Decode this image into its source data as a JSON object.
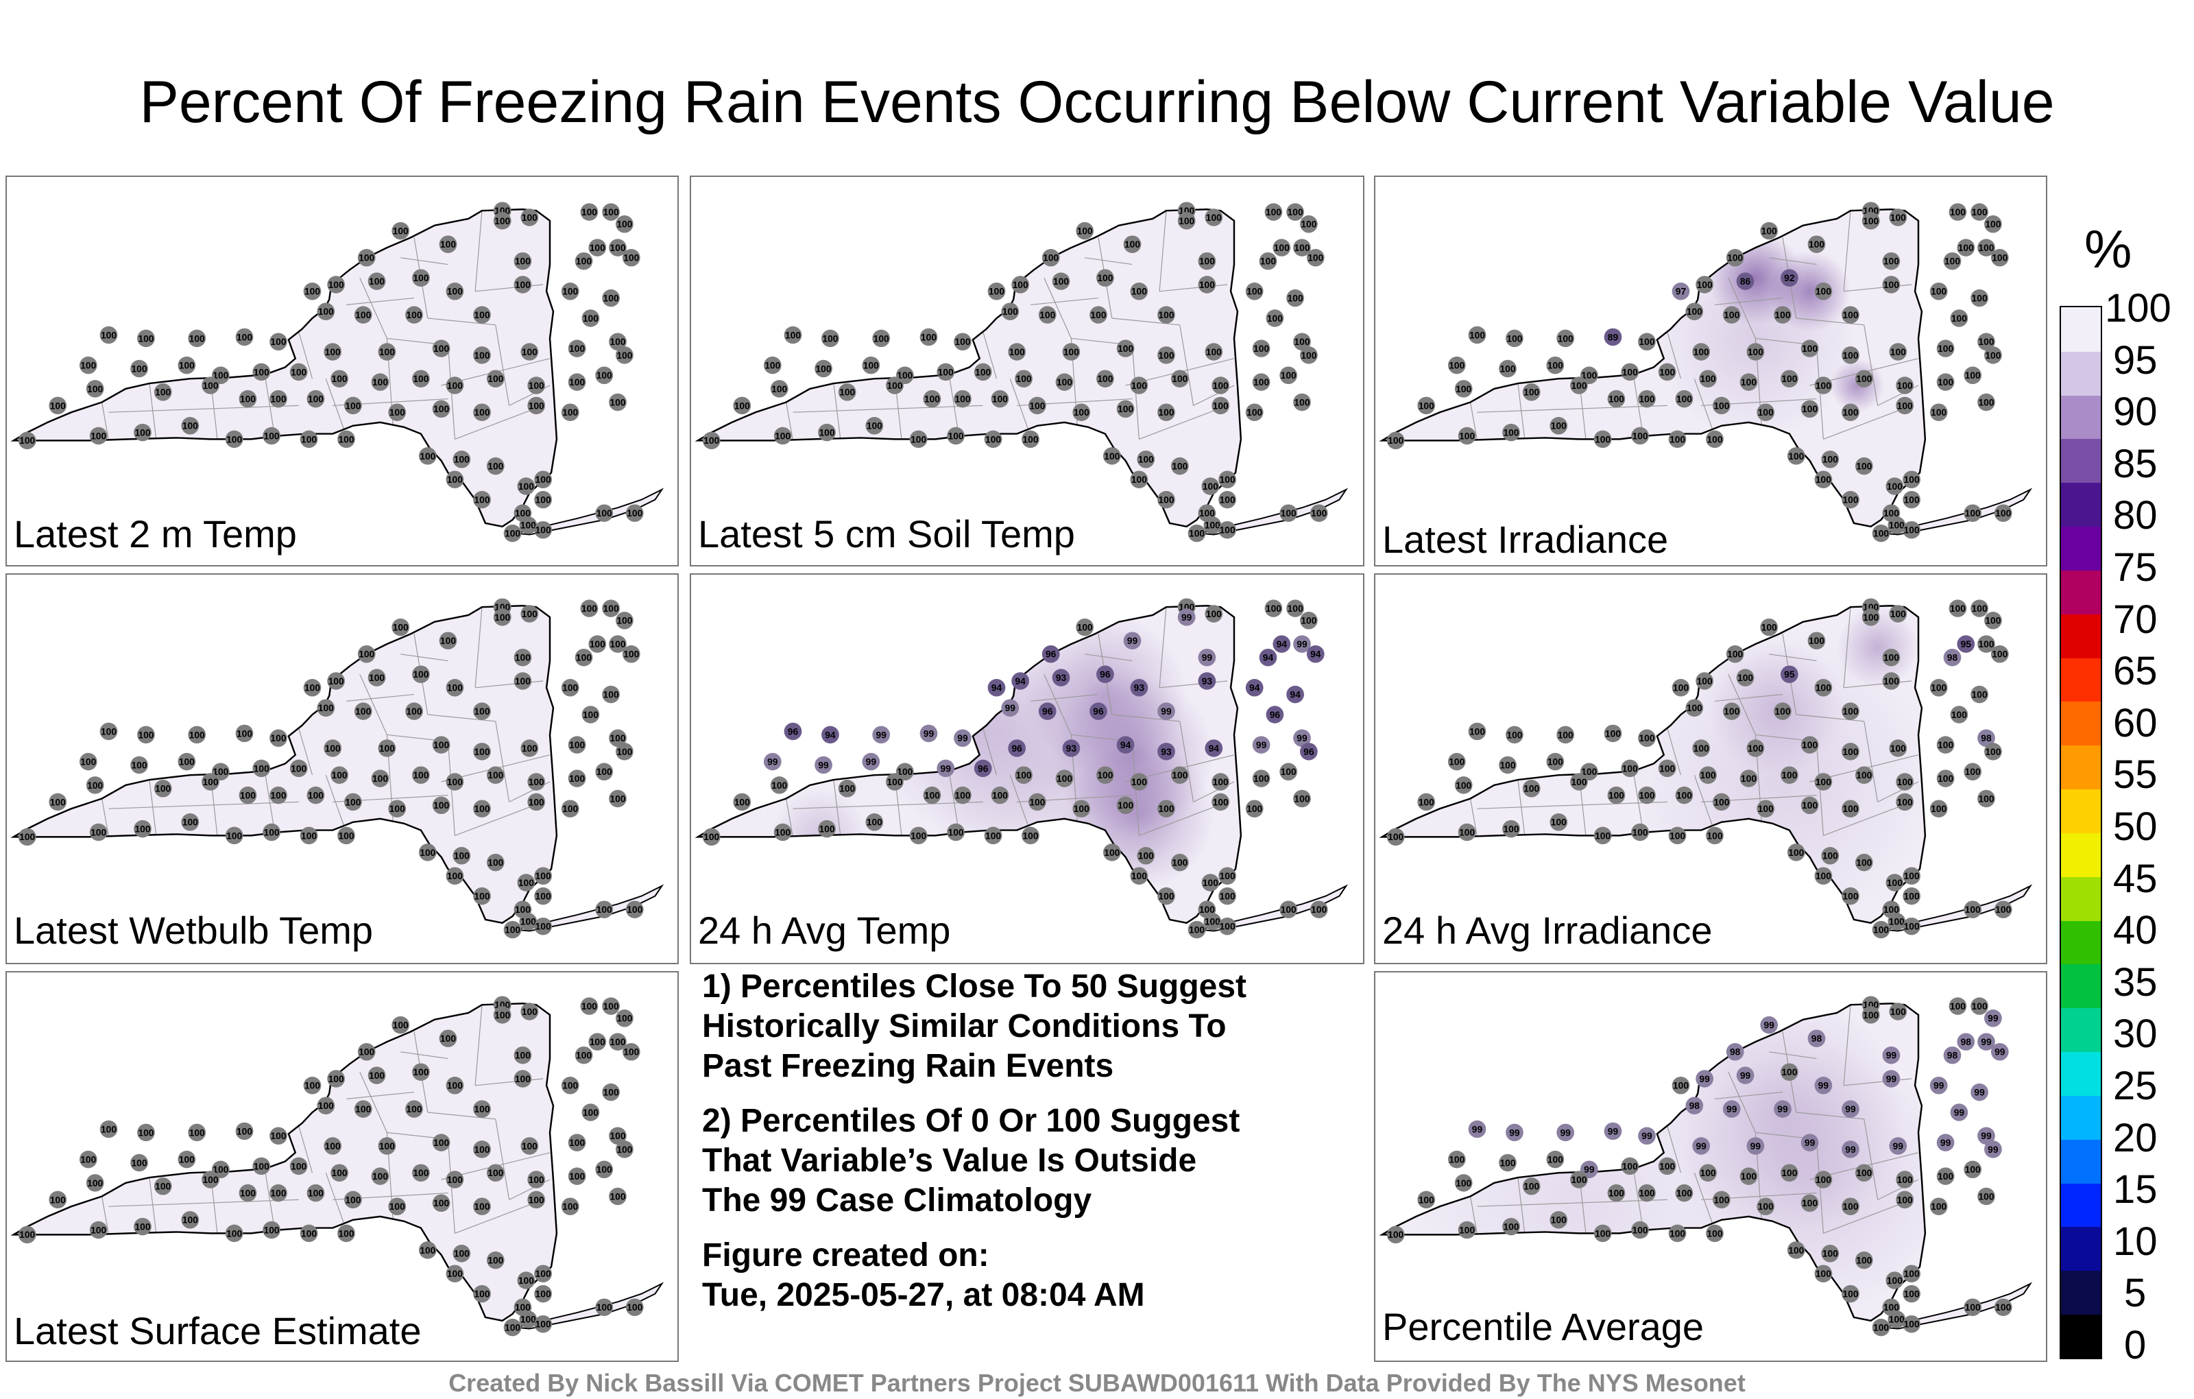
{
  "title": "Percent Of Freezing Rain Events Occurring Below Current Variable Value",
  "panels": [
    {
      "label": "Latest 2 m Temp",
      "values": [
        100,
        100,
        100,
        100,
        100,
        100,
        100,
        100,
        100,
        100,
        100,
        100,
        100,
        100,
        100,
        100,
        100,
        100,
        100,
        100,
        100,
        100,
        100,
        100,
        100,
        100,
        100,
        100,
        100,
        100,
        100,
        100,
        100,
        100,
        100,
        100,
        100,
        100,
        100,
        100,
        100,
        100,
        100,
        100,
        100,
        100,
        100,
        100,
        100,
        100,
        100,
        100,
        100,
        100,
        100,
        100,
        100,
        100,
        100,
        100,
        100,
        100,
        100,
        100,
        100,
        100,
        100,
        100,
        100,
        100,
        100,
        100,
        100,
        100,
        100,
        100,
        100,
        100,
        100,
        100,
        100,
        100,
        100,
        100,
        100,
        100,
        100,
        100,
        100,
        100
      ]
    },
    {
      "label": "Latest 5 cm Soil Temp",
      "values": [
        100,
        100,
        100,
        100,
        100,
        100,
        100,
        100,
        100,
        100,
        100,
        100,
        100,
        100,
        100,
        100,
        100,
        100,
        100,
        100,
        100,
        100,
        100,
        100,
        100,
        100,
        100,
        100,
        100,
        100,
        100,
        100,
        100,
        100,
        100,
        100,
        100,
        100,
        100,
        100,
        100,
        100,
        100,
        100,
        100,
        100,
        100,
        100,
        100,
        100,
        100,
        100,
        100,
        100,
        100,
        100,
        100,
        100,
        100,
        100,
        100,
        100,
        100,
        100,
        100,
        100,
        100,
        100,
        100,
        100,
        100,
        100,
        100,
        100,
        100,
        100,
        100,
        100,
        100,
        100,
        100,
        100,
        100,
        100,
        100,
        100,
        100,
        100,
        100,
        100
      ]
    },
    {
      "label": "Latest Irradiance",
      "values": [
        100,
        100,
        100,
        100,
        100,
        100,
        100,
        100,
        100,
        100,
        100,
        100,
        100,
        100,
        86,
        92,
        97,
        100,
        100,
        100,
        100,
        100,
        100,
        100,
        100,
        100,
        100,
        100,
        100,
        100,
        100,
        89,
        100,
        100,
        100,
        100,
        100,
        100,
        100,
        100,
        100,
        100,
        100,
        100,
        100,
        100,
        100,
        100,
        100,
        100,
        100,
        100,
        100,
        100,
        100,
        100,
        100,
        100,
        100,
        100,
        100,
        100,
        100,
        100,
        100,
        100,
        100,
        100,
        100,
        100,
        100,
        100,
        100,
        100,
        100,
        100,
        100,
        100,
        100,
        100,
        100,
        100,
        100,
        100,
        100,
        100,
        100,
        100,
        100,
        100
      ]
    },
    {
      "label": "Latest Wetbulb Temp",
      "values": [
        100,
        100,
        100,
        100,
        100,
        100,
        100,
        100,
        100,
        100,
        100,
        100,
        100,
        100,
        100,
        100,
        100,
        100,
        100,
        100,
        100,
        100,
        100,
        100,
        100,
        100,
        100,
        100,
        100,
        100,
        100,
        100,
        100,
        100,
        100,
        100,
        100,
        100,
        100,
        100,
        100,
        100,
        100,
        100,
        100,
        100,
        100,
        100,
        100,
        100,
        100,
        100,
        100,
        100,
        100,
        100,
        100,
        100,
        100,
        100,
        100,
        100,
        100,
        100,
        100,
        100,
        100,
        100,
        100,
        100,
        100,
        100,
        100,
        100,
        100,
        100,
        100,
        100,
        100,
        100,
        100,
        100,
        100,
        100,
        100,
        100,
        100,
        100,
        100,
        100
      ]
    },
    {
      "label": "24 h Avg Temp",
      "values": [
        100,
        100,
        100,
        100,
        100,
        100,
        99,
        99,
        96,
        99,
        99,
        94,
        94,
        94,
        93,
        96,
        94,
        94,
        93,
        93,
        94,
        94,
        96,
        99,
        96,
        99,
        96,
        99,
        96,
        94,
        99,
        99,
        99,
        96,
        93,
        94,
        93,
        94,
        99,
        96,
        99,
        99,
        99,
        100,
        99,
        96,
        100,
        100,
        100,
        100,
        100,
        100,
        100,
        100,
        100,
        100,
        100,
        100,
        100,
        100,
        100,
        100,
        100,
        100,
        100,
        100,
        100,
        100,
        100,
        100,
        100,
        100,
        100,
        100,
        100,
        100,
        100,
        100,
        100,
        100,
        100,
        100,
        100,
        100,
        100,
        100,
        100,
        100,
        100,
        100
      ]
    },
    {
      "label": "24 h Avg Irradiance",
      "values": [
        100,
        100,
        100,
        100,
        100,
        100,
        100,
        100,
        100,
        100,
        100,
        98,
        95,
        100,
        100,
        95,
        100,
        100,
        100,
        100,
        100,
        100,
        100,
        100,
        100,
        100,
        100,
        98,
        100,
        100,
        100,
        100,
        100,
        100,
        100,
        100,
        100,
        100,
        100,
        100,
        100,
        100,
        100,
        100,
        100,
        100,
        100,
        100,
        100,
        100,
        100,
        100,
        100,
        100,
        100,
        100,
        100,
        100,
        100,
        100,
        100,
        100,
        100,
        100,
        100,
        100,
        100,
        100,
        100,
        100,
        100,
        100,
        100,
        100,
        100,
        100,
        100,
        100,
        100,
        100,
        100,
        100,
        100,
        100,
        100,
        100,
        100,
        100,
        100,
        100
      ]
    },
    {
      "label": "Latest Surface Estimate",
      "values": [
        100,
        100,
        100,
        100,
        100,
        100,
        100,
        100,
        100,
        100,
        100,
        100,
        100,
        100,
        100,
        100,
        100,
        100,
        100,
        100,
        100,
        100,
        100,
        100,
        100,
        100,
        100,
        100,
        100,
        100,
        100,
        100,
        100,
        100,
        100,
        100,
        100,
        100,
        100,
        100,
        100,
        100,
        100,
        100,
        100,
        100,
        100,
        100,
        100,
        100,
        100,
        100,
        100,
        100,
        100,
        100,
        100,
        100,
        100,
        100,
        100,
        100,
        100,
        100,
        100,
        100,
        100,
        100,
        100,
        100,
        100,
        100,
        100,
        100,
        100,
        100,
        100,
        100,
        100,
        100,
        100,
        100,
        100,
        100,
        100,
        100,
        100,
        100,
        100,
        100
      ]
    },
    {
      "label": "Percentile Average",
      "values": [
        100,
        100,
        100,
        100,
        99,
        99,
        100,
        99,
        98,
        98,
        99,
        98,
        98,
        99,
        99,
        100,
        100,
        99,
        99,
        99,
        99,
        99,
        99,
        98,
        99,
        99,
        99,
        99,
        99,
        99,
        99,
        99,
        99,
        99,
        99,
        99,
        99,
        99,
        99,
        99,
        100,
        100,
        100,
        99,
        100,
        100,
        100,
        100,
        100,
        100,
        100,
        100,
        100,
        100,
        100,
        100,
        100,
        100,
        100,
        100,
        100,
        100,
        100,
        100,
        100,
        100,
        100,
        100,
        100,
        100,
        100,
        100,
        100,
        100,
        100,
        100,
        100,
        100,
        100,
        100,
        100,
        100,
        100,
        100,
        100,
        100,
        100,
        100,
        100,
        100
      ]
    }
  ],
  "notes": [
    "1) Percentiles Close To 50 Suggest\nHistorically Similar Conditions To\nPast Freezing Rain Events",
    "2) Percentiles Of 0 Or 100 Suggest\nThat Variable’s Value Is Outside\nThe 99 Case Climatology",
    "Figure created on:\nTue, 2025-05-27, at 08:04 AM"
  ],
  "legend": {
    "title": "%",
    "ticks": [
      "100",
      "95",
      "90",
      "85",
      "80",
      "75",
      "70",
      "65",
      "60",
      "55",
      "50",
      "45",
      "40",
      "35",
      "30",
      "25",
      "20",
      "15",
      "10",
      "5",
      "0"
    ],
    "colors": [
      "#000000",
      "#0b0b4a",
      "#0a0a9a",
      "#0026ff",
      "#0070ff",
      "#00b4ff",
      "#00e0e0",
      "#00d090",
      "#00c040",
      "#30c000",
      "#a0e000",
      "#f0f000",
      "#ffd000",
      "#ff9a00",
      "#ff6a00",
      "#ff3000",
      "#e00000",
      "#b00060",
      "#6a00a0",
      "#4b1590",
      "#7a4fa8",
      "#a98cc8",
      "#d4c6e6",
      "#f3eff8"
    ]
  },
  "credit": "Created By Nick Bassill Via COMET Partners Project SUBAWD001611 With Data Provided By The NYS Mesonet"
}
